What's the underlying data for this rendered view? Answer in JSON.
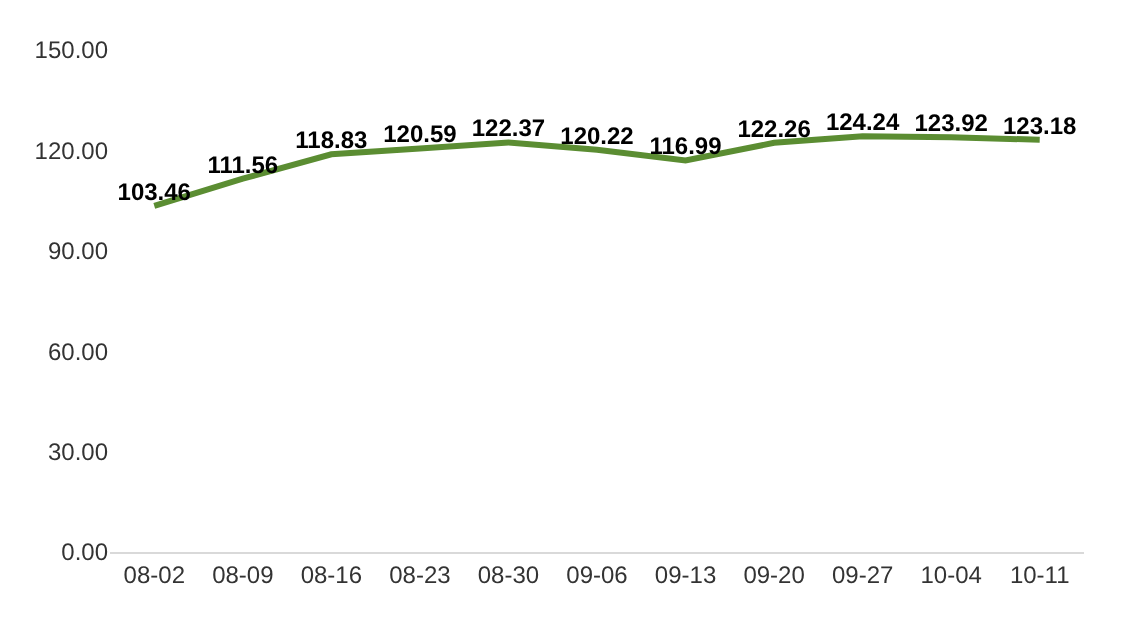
{
  "chart_data": {
    "type": "line",
    "categories": [
      "08-02",
      "08-09",
      "08-16",
      "08-23",
      "08-30",
      "09-06",
      "09-13",
      "09-20",
      "09-27",
      "10-04",
      "10-11"
    ],
    "series": [
      {
        "color": "#5b8d32",
        "values": [
          103.46,
          111.56,
          118.83,
          120.59,
          122.37,
          120.22,
          116.99,
          122.26,
          124.24,
          123.92,
          123.18
        ]
      }
    ],
    "value_labels": [
      "103.46",
      "111.56",
      "118.83",
      "120.59",
      "122.37",
      "120.22",
      "116.99",
      "122.26",
      "124.24",
      "123.92",
      "123.18"
    ],
    "ylim": [
      0,
      150
    ],
    "yticks": [
      {
        "value": 0,
        "label": "0.00"
      },
      {
        "value": 30,
        "label": "30.00"
      },
      {
        "value": 60,
        "label": "60.00"
      },
      {
        "value": 90,
        "label": "90.00"
      },
      {
        "value": 120,
        "label": "120.00"
      },
      {
        "value": 150,
        "label": "150.00"
      }
    ],
    "grid": false,
    "marker": "none",
    "line_style": "solid"
  }
}
